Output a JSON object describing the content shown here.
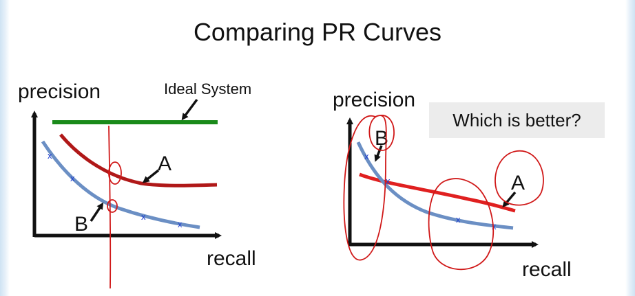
{
  "slide": {
    "title": "Comparing PR Curves",
    "question": "Which is better?"
  },
  "left_plot": {
    "ylabel": "precision",
    "xlabel": "recall",
    "ideal_label": "Ideal System",
    "curve_a_label": "A",
    "curve_b_label": "B"
  },
  "right_plot": {
    "ylabel": "precision",
    "xlabel": "recall",
    "curve_a_label": "A",
    "curve_b_label": "B"
  },
  "marker_glyph": "x",
  "colors": {
    "ideal": "#1a8a1a",
    "curve_a_left": "#b01818",
    "curve_a_right": "#e02020",
    "curve_b": "#6b8fc4",
    "annotation": "#d01818",
    "marker": "#1f3fcf",
    "question_bg": "#ececec"
  }
}
